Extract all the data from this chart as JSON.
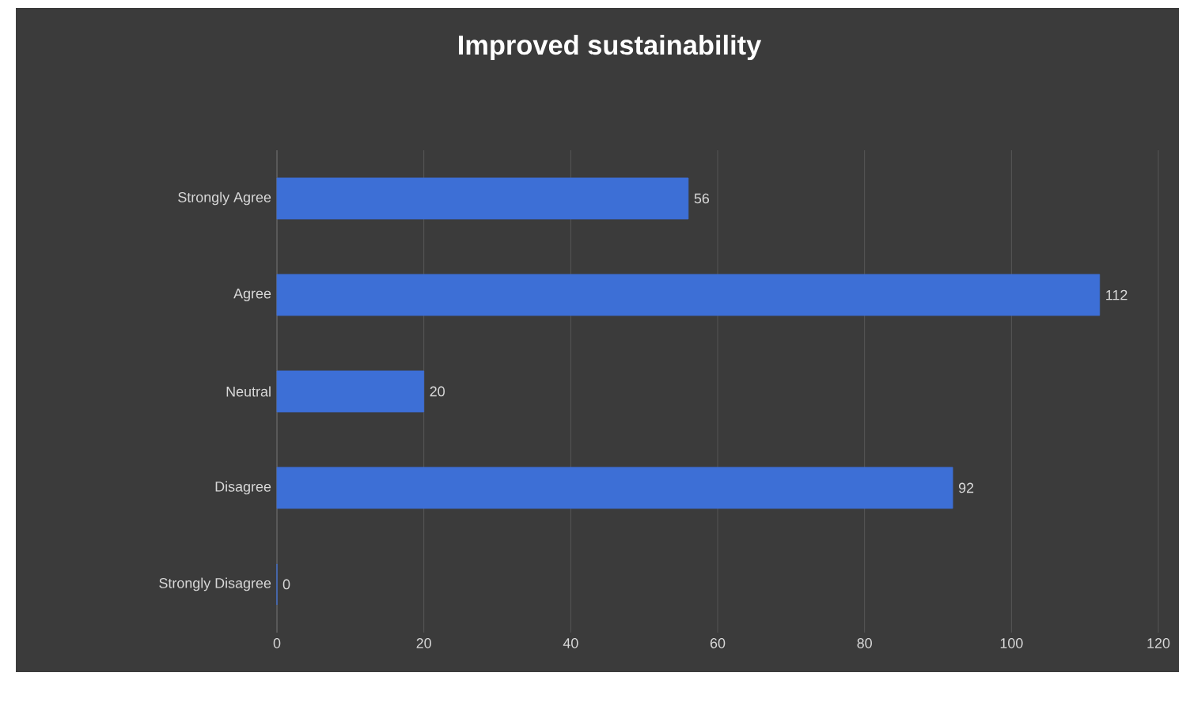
{
  "chart_data": {
    "type": "bar",
    "orientation": "horizontal",
    "title": "Improved sustainability",
    "categories": [
      "Strongly Agree",
      "Agree",
      "Neutral",
      "Disagree",
      "Strongly Disagree"
    ],
    "values": [
      56,
      112,
      20,
      92,
      0
    ],
    "color": "#3d6fd6",
    "xlim": [
      0,
      120
    ],
    "xticks": [
      0,
      20,
      40,
      60,
      80,
      100,
      120
    ],
    "grid": "x",
    "data_labels": true
  }
}
